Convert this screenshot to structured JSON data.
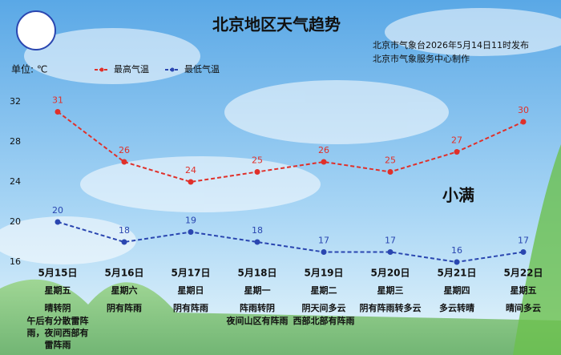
{
  "chart_data": {
    "type": "line",
    "title": "北京地区天气趋势",
    "subtitle": [
      "北京市气象台2026年5月14日11时发布",
      "北京市气象服务中心制作"
    ],
    "unit_label": "单位: ℃",
    "annotation": "小满",
    "categories": [
      "5月15日",
      "5月16日",
      "5月17日",
      "5月18日",
      "5月19日",
      "5月20日",
      "5月21日",
      "5月22日"
    ],
    "weekdays": [
      "星期五",
      "星期六",
      "星期日",
      "星期一",
      "星期二",
      "星期三",
      "星期四",
      "星期五"
    ],
    "weather": [
      "晴转阴",
      "阴有阵雨",
      "阴有阵雨",
      "阵雨转阴",
      "阴天间多云",
      "阴有阵雨转多云",
      "多云转晴",
      "晴间多云"
    ],
    "notes": [
      "午后有分散雷阵雨，夜间西部有雷阵雨",
      null,
      null,
      "夜间山区有阵雨",
      "西部北部有阵雨",
      null,
      null,
      null
    ],
    "series": [
      {
        "name": "最高气温",
        "color": "#e0302a",
        "values": [
          31,
          26,
          24,
          25,
          26,
          25,
          27,
          30
        ]
      },
      {
        "name": "最低气温",
        "color": "#2a46b0",
        "values": [
          20,
          18,
          19,
          18,
          17,
          17,
          16,
          17
        ]
      }
    ],
    "ylim": [
      16,
      32
    ],
    "yticks": [
      16,
      20,
      24,
      28,
      32
    ],
    "grid": false
  }
}
